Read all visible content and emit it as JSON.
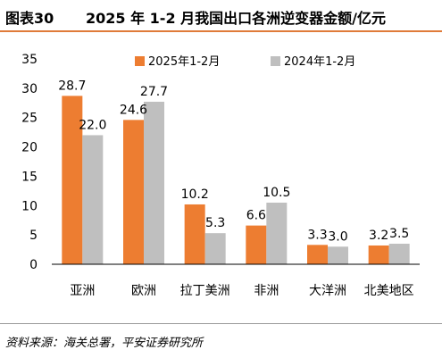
{
  "figure": {
    "label": "图表30",
    "title": "2025 年 1-2 月我国出口各洲逆变器金额/亿元"
  },
  "source": "资料来源：海关总署，平安证券研究所",
  "chart_data": {
    "type": "bar",
    "categories": [
      "亚洲",
      "欧洲",
      "拉丁美洲",
      "非洲",
      "大洋洲",
      "北美地区"
    ],
    "series": [
      {
        "name": "2025年1-2月",
        "values": [
          28.7,
          24.6,
          10.2,
          6.6,
          3.3,
          3.2
        ],
        "color": "#ed7d31"
      },
      {
        "name": "2024年1-2月",
        "values": [
          22.0,
          27.7,
          5.3,
          10.5,
          3.0,
          3.5
        ],
        "color": "#bfbfbf"
      }
    ],
    "ylim": [
      0,
      35
    ],
    "yticks": [
      0,
      5,
      10,
      15,
      20,
      25,
      30,
      35
    ],
    "xlabel": "",
    "ylabel": "",
    "grid": false,
    "legend": "top-right"
  }
}
